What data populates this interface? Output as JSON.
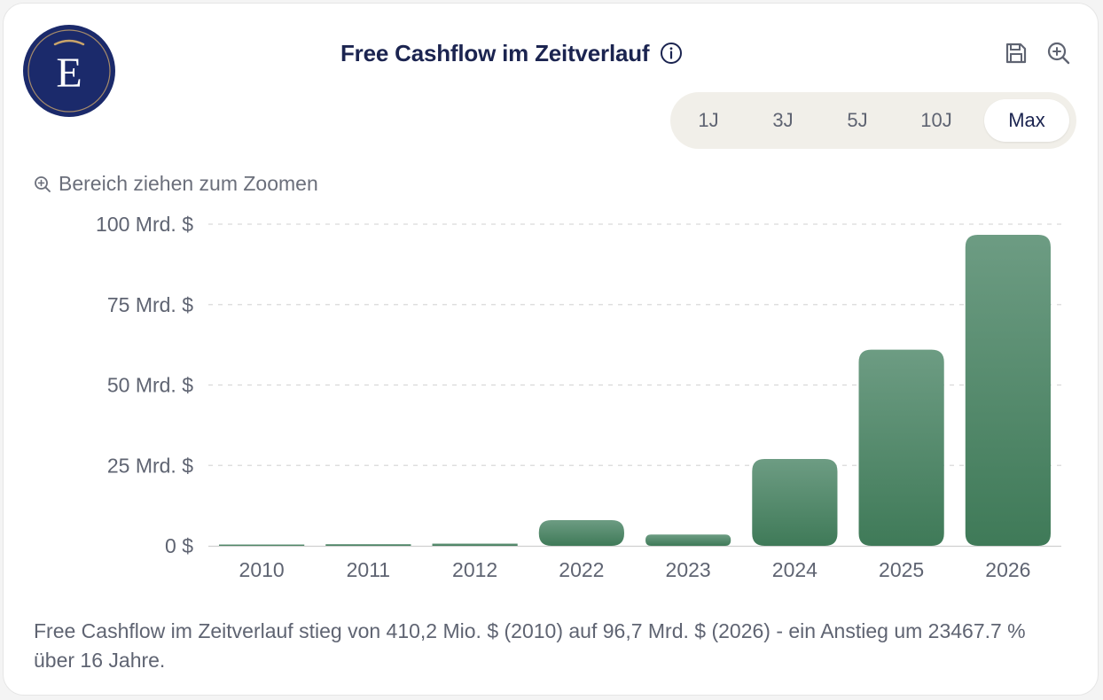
{
  "header": {
    "title": "Free Cashflow im Zeitverlauf",
    "logo_letter": "E",
    "logo_bg": "#1b2a6b",
    "logo_accent": "#c9a46a",
    "icons": {
      "info": "info-icon",
      "save": "save-icon",
      "zoom": "zoom-in-icon"
    }
  },
  "range_selector": {
    "options": [
      "1J",
      "3J",
      "5J",
      "10J",
      "Max"
    ],
    "selected": "Max"
  },
  "zoom_hint": "Bereich ziehen zum Zoomen",
  "chart_data": {
    "type": "bar",
    "title": "Free Cashflow im Zeitverlauf",
    "xlabel": "",
    "ylabel": "",
    "categories": [
      "2010",
      "2011",
      "2012",
      "2022",
      "2023",
      "2024",
      "2025",
      "2026"
    ],
    "values": [
      0.41,
      0.5,
      0.7,
      8.0,
      3.5,
      27.0,
      61.0,
      96.7
    ],
    "value_unit": "Mrd. $",
    "ylim": [
      0,
      100
    ],
    "yticks": [
      0,
      25,
      50,
      75,
      100
    ],
    "ytick_labels": [
      "0 $",
      "25 Mrd. $",
      "50 Mrd. $",
      "75 Mrd. $",
      "100 Mrd. $"
    ],
    "grid": true,
    "legend": "none",
    "bar_color_top": "#6d9c83",
    "bar_color_bottom": "#3f7a58"
  },
  "summary": "Free Cashflow im Zeitverlauf stieg von 410,2 Mio. $ (2010) auf 96,7 Mrd. $ (2026) - ein Anstieg um 23467.7 % über 16 Jahre."
}
